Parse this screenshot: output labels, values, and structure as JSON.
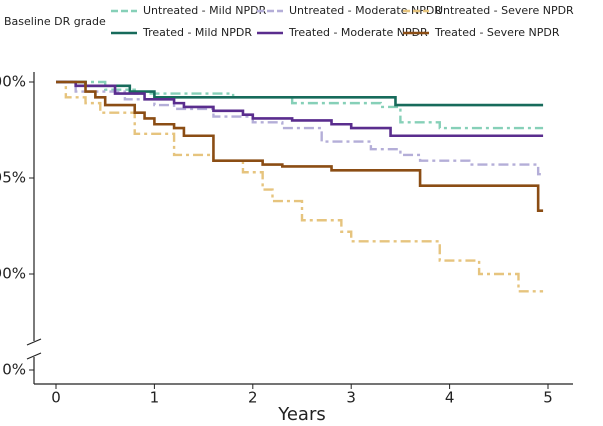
{
  "chart_data": {
    "type": "step",
    "legend_title": "Baseline DR grade",
    "xlabel": "Years",
    "xlim": [
      0,
      5
    ],
    "xticks": [
      0,
      1,
      2,
      3,
      4,
      5
    ],
    "ylim": [
      0,
      100
    ],
    "ybreak": [
      2,
      86
    ],
    "yticks": [
      {
        "value": 100,
        "label": "100%"
      },
      {
        "value": 95,
        "label": "95%"
      },
      {
        "value": 90,
        "label": "90%"
      },
      {
        "value": 0,
        "label": "0%"
      }
    ],
    "series": [
      {
        "name": "Untreated - Mild NPDR",
        "color": "#86d0b8",
        "dash": true,
        "x": [
          0,
          0.5,
          0.8,
          1.8,
          2.4,
          3.3,
          3.5,
          3.9,
          4.95
        ],
        "values": [
          100,
          99.6,
          99.4,
          99.2,
          98.9,
          98.7,
          97.9,
          97.6,
          97.6
        ]
      },
      {
        "name": "Untreated - Moderate NPDR",
        "color": "#b4aed8",
        "dash": true,
        "x": [
          0,
          0.2,
          0.7,
          1.0,
          1.2,
          1.6,
          2.0,
          2.3,
          2.7,
          3.2,
          3.5,
          3.7,
          4.2,
          4.9,
          4.95
        ],
        "values": [
          100,
          99.5,
          99.1,
          98.8,
          98.6,
          98.2,
          97.9,
          97.6,
          96.9,
          96.5,
          96.2,
          95.9,
          95.7,
          95.2,
          95.2
        ]
      },
      {
        "name": "Untreated - Severe NPDR",
        "color": "#e6c47e",
        "dash": true,
        "x": [
          0,
          0.1,
          0.3,
          0.45,
          0.8,
          1.2,
          1.6,
          1.9,
          2.1,
          2.2,
          2.5,
          2.9,
          3.0,
          3.9,
          4.3,
          4.7,
          4.95
        ],
        "values": [
          100,
          99.2,
          98.9,
          98.4,
          97.3,
          96.2,
          95.9,
          95.3,
          94.4,
          93.8,
          92.8,
          92.2,
          91.7,
          90.7,
          90.0,
          89.1,
          89.1
        ]
      },
      {
        "name": "Treated - Mild NPDR",
        "color": "#176b5b",
        "dash": false,
        "x": [
          0,
          0.3,
          0.75,
          1.0,
          3.45,
          4.95
        ],
        "values": [
          100,
          99.8,
          99.5,
          99.2,
          98.8,
          98.8
        ]
      },
      {
        "name": "Treated - Moderate NPDR",
        "color": "#5a2d8e",
        "dash": false,
        "x": [
          0,
          0.2,
          0.6,
          0.9,
          1.2,
          1.3,
          1.6,
          1.9,
          2.0,
          2.4,
          2.8,
          3.0,
          3.4,
          4.95
        ],
        "values": [
          100,
          99.8,
          99.4,
          99.1,
          98.9,
          98.7,
          98.5,
          98.3,
          98.1,
          98.0,
          97.8,
          97.6,
          97.2,
          97.2
        ]
      },
      {
        "name": "Treated - Severe NPDR",
        "color": "#8b4d14",
        "dash": false,
        "x": [
          0,
          0.3,
          0.4,
          0.5,
          0.8,
          0.9,
          1.0,
          1.2,
          1.3,
          1.6,
          2.1,
          2.3,
          2.8,
          3.7,
          4.9,
          4.95
        ],
        "values": [
          100,
          99.5,
          99.2,
          98.8,
          98.4,
          98.1,
          97.8,
          97.6,
          97.2,
          95.9,
          95.7,
          95.6,
          95.4,
          94.6,
          93.3,
          93.3
        ]
      }
    ]
  }
}
